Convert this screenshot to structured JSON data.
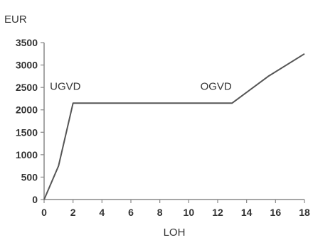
{
  "chart_data": {
    "type": "line",
    "title": "",
    "xlabel": "LOH",
    "ylabel": "EUR",
    "xlim": [
      0,
      18
    ],
    "ylim": [
      0,
      3500
    ],
    "x_ticks": [
      "0",
      "2",
      "4",
      "6",
      "8",
      "10",
      "12",
      "14",
      "16",
      "18"
    ],
    "y_ticks": [
      "0",
      "500",
      "1000",
      "1500",
      "2000",
      "2500",
      "3000",
      "3500"
    ],
    "grid": false,
    "legend": "none",
    "line_color": "#555555",
    "series": [
      {
        "x": [
          0,
          1,
          2,
          13,
          15.5,
          18
        ],
        "values": [
          0,
          750,
          2150,
          2150,
          2750,
          3250
        ]
      }
    ],
    "annotations": [
      {
        "text": "UGVD",
        "x": 0.4,
        "y": 2450
      },
      {
        "text": "OGVD",
        "x": 10.8,
        "y": 2450
      }
    ]
  }
}
